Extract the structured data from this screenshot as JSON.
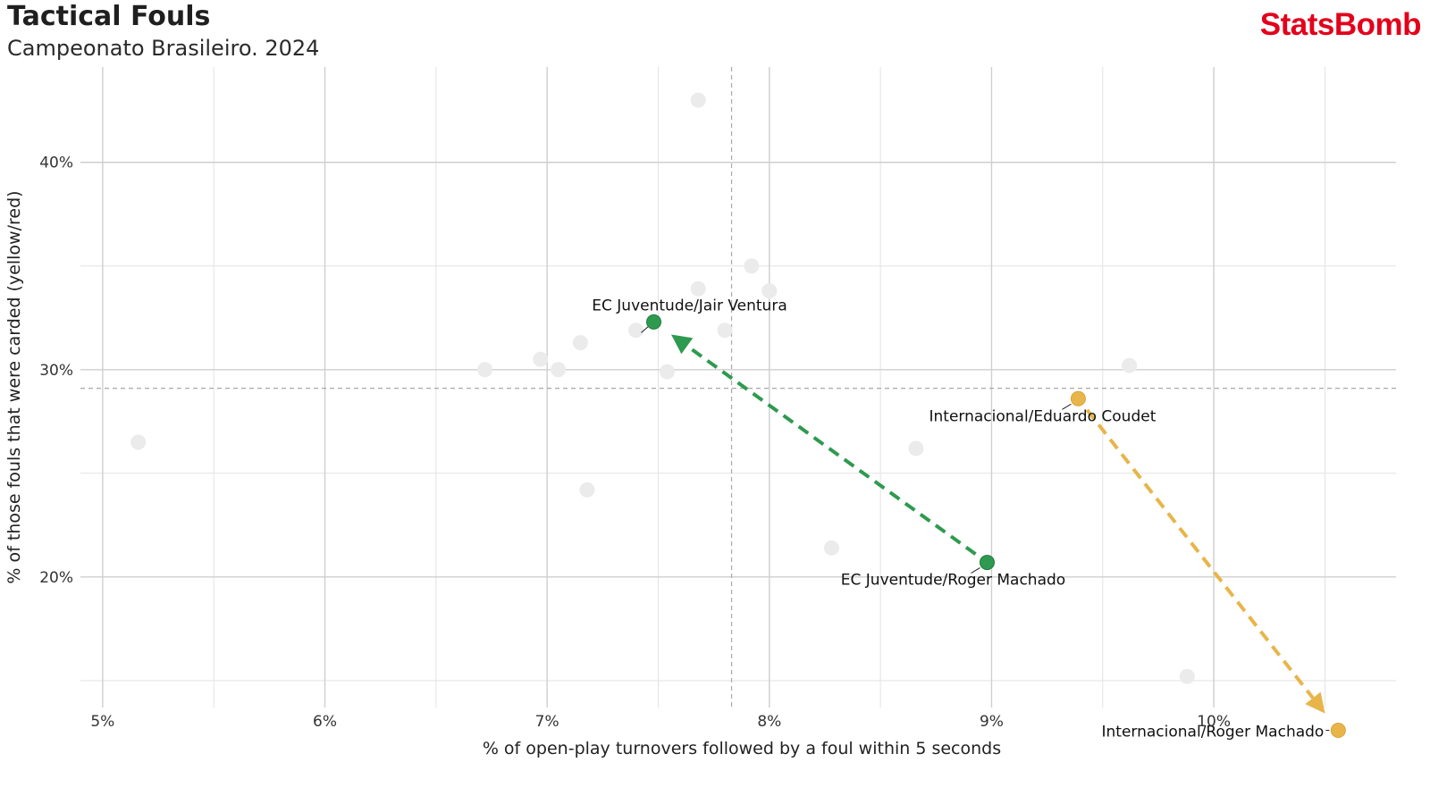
{
  "header": {
    "title": "Tactical Fouls",
    "subtitle": "Campeonato Brasileiro. 2024",
    "brand": "StatsBomb"
  },
  "colors": {
    "green": "#2e9a4f",
    "orange": "#e8b54a",
    "background_point": "#ebebeb",
    "brand": "#e3001b"
  },
  "chart_data": {
    "type": "scatter",
    "title": "Tactical Fouls",
    "subtitle": "Campeonato Brasileiro. 2024",
    "xlabel": "% of open-play turnovers followed by a foul within 5 seconds",
    "ylabel": "% of those fouls that were carded (yellow/red)",
    "x_ticks": [
      5,
      6,
      7,
      8,
      9,
      10
    ],
    "x_tick_labels": [
      "5%",
      "6%",
      "7%",
      "8%",
      "9%",
      "10%"
    ],
    "y_ticks": [
      20,
      30,
      40
    ],
    "y_tick_labels": [
      "20%",
      "30%",
      "40%"
    ],
    "xlim": [
      4.9,
      10.82
    ],
    "ylim": [
      13.7,
      44.6
    ],
    "grid": true,
    "x_mean": 7.83,
    "y_mean": 29.1,
    "background_points": [
      {
        "x": 5.16,
        "y": 26.5
      },
      {
        "x": 6.72,
        "y": 30.0
      },
      {
        "x": 6.97,
        "y": 30.5
      },
      {
        "x": 7.05,
        "y": 30.0
      },
      {
        "x": 7.15,
        "y": 31.3
      },
      {
        "x": 7.18,
        "y": 24.2
      },
      {
        "x": 7.4,
        "y": 31.9
      },
      {
        "x": 7.54,
        "y": 29.9
      },
      {
        "x": 7.68,
        "y": 43.0
      },
      {
        "x": 7.68,
        "y": 33.9
      },
      {
        "x": 7.8,
        "y": 31.9
      },
      {
        "x": 7.92,
        "y": 35.0
      },
      {
        "x": 8.0,
        "y": 33.8
      },
      {
        "x": 8.28,
        "y": 21.4
      },
      {
        "x": 8.66,
        "y": 26.2
      },
      {
        "x": 9.62,
        "y": 30.2
      },
      {
        "x": 9.88,
        "y": 15.2
      }
    ],
    "series": [
      {
        "name": "EC Juventude",
        "color": "#2e9a4f",
        "from": {
          "label": "EC Juventude/Roger Machado",
          "x": 8.98,
          "y": 20.7
        },
        "to": {
          "label": "EC Juventude/Jair Ventura",
          "x": 7.48,
          "y": 32.3
        }
      },
      {
        "name": "Internacional",
        "color": "#e8b54a",
        "from": {
          "label": "Internacional/Eduardo Coudet",
          "x": 9.39,
          "y": 28.6
        },
        "to": {
          "label": "Internacional/Roger Machado",
          "x": 10.56,
          "y": 12.6
        }
      }
    ]
  }
}
